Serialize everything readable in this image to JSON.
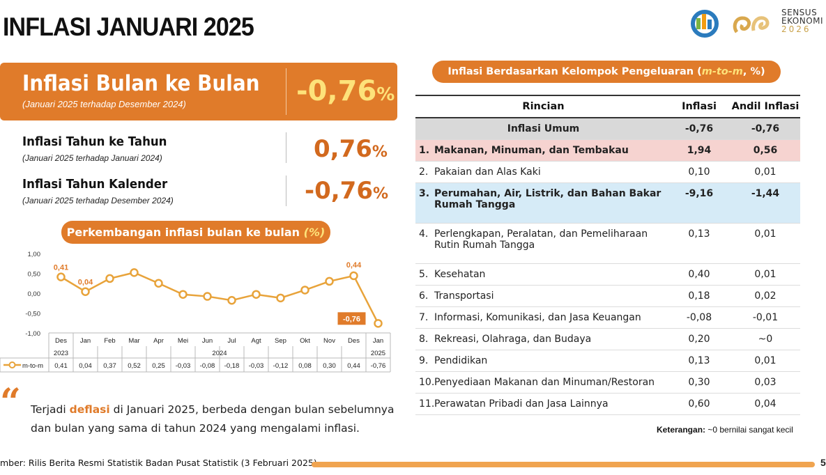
{
  "page": {
    "title": "INFLASI JANUARI 2025",
    "logo": {
      "line1": "SENSUS",
      "line2": "EKONOMI",
      "year": "2026"
    }
  },
  "mtm": {
    "label": "Inflasi Bulan ke Bulan",
    "sub": "(Januari 2025 terhadap Desember 2024)",
    "value": "-0,76",
    "pct": "%"
  },
  "yoy": {
    "label": "Inflasi Tahun ke Tahun",
    "sub": "(Januari 2025 terhadap Januari 2024)",
    "value": "0,76",
    "pct": "%"
  },
  "ytd": {
    "label": "Inflasi Tahun Kalender",
    "sub": "(Januari 2025 terhadap Desember 2024)",
    "value": "-0,76",
    "pct": "%"
  },
  "chart_section": {
    "title": "Perkembangan inflasi bulan ke bulan",
    "title_hl": "(%)"
  },
  "chart_data": {
    "type": "line",
    "categories": [
      "Des",
      "Jan",
      "Feb",
      "Mar",
      "Apr",
      "Mei",
      "Jun",
      "Jul",
      "Agt",
      "Sep",
      "Okt",
      "Nov",
      "Des",
      "Jan"
    ],
    "year_labels": {
      "first": "2023",
      "middle": "2024",
      "last": "2025"
    },
    "series": [
      {
        "name": "m-to-m",
        "values": [
          0.41,
          0.04,
          0.37,
          0.52,
          0.25,
          -0.03,
          -0.08,
          -0.18,
          -0.03,
          -0.12,
          0.08,
          0.3,
          0.44,
          -0.76
        ]
      }
    ],
    "value_labels": [
      "0,41",
      "0,04",
      "0,37",
      "0,52",
      "0,25",
      "-0,03",
      "-0,08",
      "-0,18",
      "-0,03",
      "-0,12",
      "0,08",
      "0,30",
      "0,44",
      "-0,76"
    ],
    "callouts": [
      {
        "index": 0,
        "text": "0,41"
      },
      {
        "index": 1,
        "text": "0,04"
      },
      {
        "index": 12,
        "text": "0,44"
      },
      {
        "index": 13,
        "text": "-0,76"
      }
    ],
    "ylim": [
      -1.0,
      1.0
    ],
    "yticks": [
      "1,00",
      "0,50",
      "0,00",
      "-0,50",
      "-1,00"
    ],
    "ytick_values": [
      1.0,
      0.5,
      0.0,
      -0.5,
      -1.0
    ],
    "line_color": "#e8a33a",
    "callout_color": "#e07b2a"
  },
  "note": {
    "pre": "Terjadi ",
    "highlight": "deflasi",
    "post": " di Januari 2025, berbeda dengan bulan sebelumnya",
    "line2": "dan bulan yang sama di tahun 2024 yang mengalami inflasi."
  },
  "table_section": {
    "title": "Inflasi Berdasarkan Kelompok Pengeluaran (",
    "title_hl": "m-to-m",
    "title_end": ", %)"
  },
  "table": {
    "headers": [
      "Rincian",
      "Inflasi",
      "Andil Inflasi"
    ],
    "general": {
      "label": "Inflasi Umum",
      "inflasi": "-0,76",
      "andil": "-0,76"
    },
    "rows": [
      {
        "no": "1.",
        "line1": "Makanan, Minuman, dan Tembakau",
        "line2": "",
        "inflasi": "1,94",
        "andil": "0,56"
      },
      {
        "no": "2.",
        "line1": "Pakaian dan Alas Kaki",
        "line2": "",
        "inflasi": "0,10",
        "andil": "0,01"
      },
      {
        "no": "3.",
        "line1": "Perumahan, Air, Listrik, dan Bahan Bakar",
        "line2": "Rumah Tangga",
        "inflasi": "-9,16",
        "andil": "-1,44"
      },
      {
        "no": "4.",
        "line1": "Perlengkapan, Peralatan, dan Pemeliharaan",
        "line2": "Rutin Rumah Tangga",
        "inflasi": "0,13",
        "andil": "0,01"
      },
      {
        "no": "5.",
        "line1": "Kesehatan",
        "line2": "",
        "inflasi": "0,40",
        "andil": "0,01"
      },
      {
        "no": "6.",
        "line1": "Transportasi",
        "line2": "",
        "inflasi": "0,18",
        "andil": "0,02"
      },
      {
        "no": "7.",
        "line1": "Informasi, Komunikasi, dan Jasa Keuangan",
        "line2": "",
        "inflasi": "-0,08",
        "andil": "-0,01"
      },
      {
        "no": "8.",
        "line1": "Rekreasi, Olahraga, dan Budaya",
        "line2": "",
        "inflasi": "0,20",
        "andil": "~0"
      },
      {
        "no": "9.",
        "line1": "Pendidikan",
        "line2": "",
        "inflasi": "0,13",
        "andil": "0,01"
      },
      {
        "no": "10.",
        "line1": "Penyediaan Makanan dan Minuman/Restoran",
        "line2": "",
        "inflasi": "0,30",
        "andil": "0,03"
      },
      {
        "no": "11.",
        "line1": "Perawatan Pribadi dan Jasa Lainnya",
        "line2": "",
        "inflasi": "0,60",
        "andil": "0,04"
      }
    ]
  },
  "keterangan": {
    "label": "Keterangan:",
    "text": " ~0 bernilai sangat kecil"
  },
  "footer": {
    "source": "mber: Rilis Berita Resmi Statistik Badan Pusat Statistik (3 Februari 2025)",
    "page": "5"
  }
}
